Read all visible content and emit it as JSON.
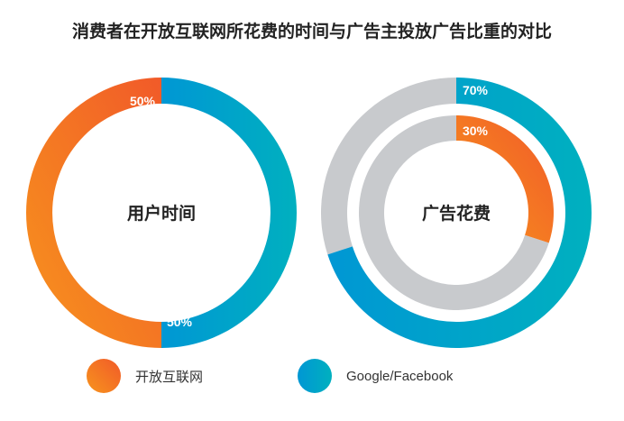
{
  "title": "消费者在开放互联网所花费的时间与广告主投放广告比重的对比",
  "colors": {
    "open_web_start": "#f7941d",
    "open_web_end": "#f15a29",
    "facebook_google_start": "#0097d4",
    "facebook_google_end": "#00b0bf",
    "remainder": "#c8cacd"
  },
  "chart_data": [
    {
      "type": "pie",
      "style": "donut",
      "center_label": "用户时间",
      "slices": [
        {
          "label": "开放互联网",
          "value": 50,
          "value_label": "50%"
        },
        {
          "label": "Google/Facebook",
          "value": 50,
          "value_label": "50%"
        }
      ]
    },
    {
      "type": "pie",
      "style": "concentric-donut",
      "center_label": "广告花费",
      "rings": [
        {
          "position": "outer",
          "label": "Google/Facebook",
          "value": 70,
          "value_label": "70%"
        },
        {
          "position": "inner",
          "label": "开放互联网",
          "value": 30,
          "value_label": "30%"
        }
      ]
    }
  ],
  "legend": [
    {
      "label": "开放互联网",
      "swatch": "open-web"
    },
    {
      "label": "Google/Facebook",
      "swatch": "facebook-google"
    }
  ]
}
